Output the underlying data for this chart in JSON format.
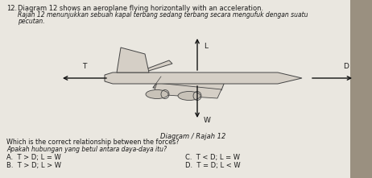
{
  "question_num": "12.",
  "title_en": "Diagram 12 shows an aeroplane flying horizontally with an acceleration.",
  "title_ms": "Rajah 12 menunjukkan sebuah kapal terbang sedang terbang secara mengufuk dengan suatu",
  "title_ms2": "pecutan.",
  "diagram_label": "Diagram / Rajah 12",
  "question_en": "Which is the correct relationship between the forces?",
  "question_ms": "Apakah hubungan yang betul antara daya-daya itu?",
  "options": [
    {
      "letter": "A.",
      "text": "T > D; L = W"
    },
    {
      "letter": "B.",
      "text": "T > D; L > W"
    },
    {
      "letter": "C.",
      "text": "T < D; L = W"
    },
    {
      "letter": "D.",
      "text": "T = D; L < W"
    }
  ],
  "bg_color": "#eae7e0",
  "text_color": "#1a1a1a",
  "arrow_color": "#111111",
  "plane_color": "#d5cfc6",
  "plane_edge": "#444444",
  "font_size_header": 6.0,
  "font_size_body": 5.8,
  "font_size_italic": 5.5,
  "font_size_label": 6.5,
  "font_size_diagram": 6.0,
  "font_size_option": 6.0
}
